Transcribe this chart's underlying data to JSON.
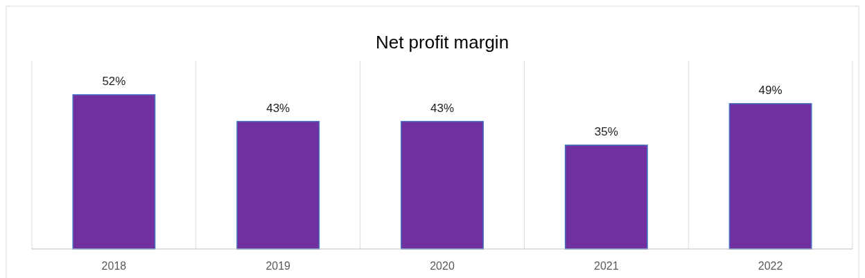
{
  "chart_data": {
    "type": "bar",
    "title": "Net profit margin",
    "categories": [
      "2018",
      "2019",
      "2020",
      "2021",
      "2022"
    ],
    "values": [
      52,
      43,
      43,
      35,
      49
    ],
    "value_labels": [
      "52%",
      "43%",
      "43%",
      "35%",
      "49%"
    ],
    "color": "#7030a0",
    "grid": "x"
  }
}
